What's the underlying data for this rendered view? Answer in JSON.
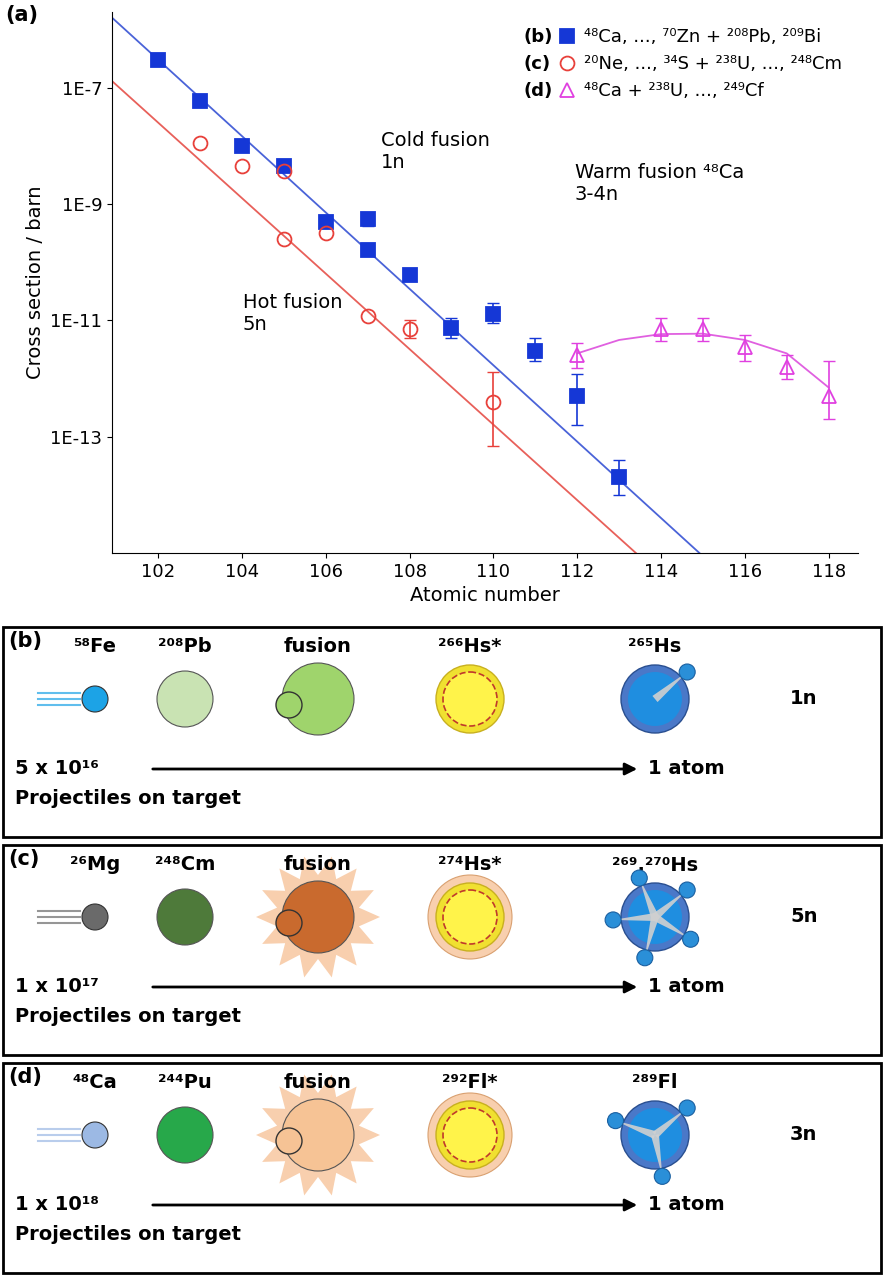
{
  "panel_label": "(a)",
  "chart_data": {
    "type": "scatter",
    "x_label": "Atomic number",
    "y_label": "Cross section / barn",
    "log": "y",
    "xlim": [
      100.9,
      118.7
    ],
    "xticks": [
      102,
      104,
      106,
      108,
      110,
      112,
      114,
      116,
      118
    ],
    "ylim": [
      1e-15,
      2e-06
    ],
    "yticks": [
      {
        "value": 1e-07,
        "label": "1E-7"
      },
      {
        "value": 1e-09,
        "label": "1E-9"
      },
      {
        "value": 1e-11,
        "label": "1E-11"
      },
      {
        "value": 1e-13,
        "label": "1E-13"
      }
    ],
    "legend": "upper right",
    "annotations": [
      {
        "text": "Cold fusion\n1n"
      },
      {
        "text": "Hot fusion\n5n"
      },
      {
        "text": "Warm fusion ⁴⁸Ca\n3-4n"
      }
    ],
    "series": [
      {
        "name": "⁴⁸Ca, ..., ⁷⁰Zn + ²⁰⁸Pb, ²⁰⁹Bi",
        "panel": "(b)",
        "type": "scatter",
        "marker": "square",
        "color": "#1537d6",
        "x": [
          102,
          103,
          104,
          105,
          106,
          107,
          107,
          108,
          109,
          110,
          111,
          112,
          113
        ],
        "values": [
          3e-07,
          6e-08,
          1e-08,
          4.5e-09,
          5e-10,
          5.5e-10,
          1.6e-10,
          6e-11,
          7.5e-12,
          1.3e-11,
          3e-12,
          5e-13,
          2e-14
        ],
        "errors": [
          null,
          [
            4.8e-08,
            7.5e-08
          ],
          null,
          null,
          [
            4.2e-10,
            6e-10
          ],
          [
            4.2e-10,
            7e-10
          ],
          null,
          null,
          [
            5e-12,
            1.1e-11
          ],
          [
            9e-12,
            2e-11
          ],
          [
            2e-12,
            5e-12
          ],
          [
            1.6e-13,
            1.2e-12
          ],
          [
            1e-14,
            4e-14
          ]
        ]
      },
      {
        "name": "²⁰Ne, ..., ³⁴S + ²³⁸U, ..., ²⁴⁸Cm",
        "panel": "(c)",
        "type": "scatter",
        "marker": "open circle",
        "color": "#e8403a",
        "x": [
          103,
          104,
          105,
          105,
          106,
          107,
          108,
          110
        ],
        "values": [
          1.1e-08,
          4.5e-09,
          3.7e-09,
          2.5e-10,
          3.2e-10,
          1.2e-11,
          7e-12,
          4e-13
        ],
        "errors": [
          null,
          null,
          null,
          null,
          null,
          null,
          [
            5e-12,
            1e-11
          ],
          [
            7e-14,
            1.3e-12
          ]
        ]
      },
      {
        "name": "⁴⁸Ca + ²³⁸U, ..., ²⁴⁹Cf",
        "panel": "(d)",
        "type": "scatter",
        "marker": "open triangle",
        "color": "#e040e0",
        "x": [
          112,
          114,
          115,
          116,
          117,
          118
        ],
        "values": [
          2.5e-12,
          7e-12,
          7e-12,
          3.5e-12,
          1.6e-12,
          5e-13
        ],
        "errors": [
          [
            1.5e-12,
            4e-12
          ],
          [
            4.5e-12,
            1.1e-11
          ],
          [
            4.5e-12,
            1.1e-11
          ],
          [
            2e-12,
            5.5e-12
          ],
          [
            1e-12,
            2.5e-12
          ],
          [
            2e-13,
            2e-12
          ]
        ]
      },
      {
        "type": "line",
        "color": "#4a63d8",
        "x": [
          100.9,
          115
        ],
        "values": [
          1.6e-06,
          8.8e-16
        ]
      },
      {
        "type": "line",
        "color": "#e8605a",
        "x": [
          100.9,
          113.4
        ],
        "values": [
          1.3e-07,
          1e-15
        ]
      },
      {
        "type": "line",
        "color": "#e060e0",
        "x": [
          112,
          113,
          114,
          115,
          116,
          117,
          118
        ],
        "values": [
          2.7e-12,
          4.6e-12,
          5.8e-12,
          5.9e-12,
          4.6e-12,
          2.7e-12,
          7e-13
        ]
      }
    ]
  },
  "reactions": [
    {
      "label": "(b)",
      "projectile": "⁵⁸Fe",
      "target": "²⁰⁸Pb",
      "step": "fusion",
      "compound": "²⁶⁶Hs*",
      "product": "²⁶⁵Hs",
      "neutrons": "1n",
      "projectiles": "5 x 10¹⁶",
      "projectiles_text": "Projectiles on target",
      "result": "1 atom",
      "colors": [
        "#1ca3e6",
        "#c9e3b3",
        "#9fd46c"
      ]
    },
    {
      "label": "(c)",
      "projectile": "²⁶Mg",
      "target": "²⁴⁸Cm",
      "step": "fusion",
      "compound": "²⁷⁴Hs*",
      "product": "²⁶⁹,²⁷⁰Hs",
      "neutrons": "5n",
      "projectiles": "1 x 10¹⁷",
      "projectiles_text": "Projectiles on target",
      "result": "1 atom",
      "colors": [
        "#6a6a6a",
        "#4e7a3a",
        "#c96a2e"
      ]
    },
    {
      "label": "(d)",
      "projectile": "⁴⁸Ca",
      "target": "²⁴⁴Pu",
      "step": "fusion",
      "compound": "²⁹²Fl*",
      "product": "²⁸⁹Fl",
      "neutrons": "3n",
      "projectiles": "1 x 10¹⁸",
      "projectiles_text": "Projectiles on target",
      "result": "1 atom",
      "colors": [
        "#9cb9e4",
        "#27a84a",
        "#f6c395"
      ]
    }
  ]
}
